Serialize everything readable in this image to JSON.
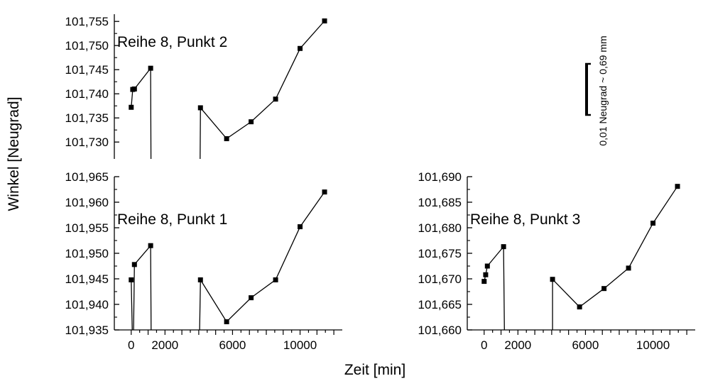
{
  "figure": {
    "ylabel": "Winkel [Neugrad]",
    "xlabel": "Zeit [min]",
    "scalebar_label": "0,01 Neugrad ~ 0,69 mm"
  },
  "chart_data": [
    {
      "id": "p2",
      "type": "line",
      "label": "Reihe 8, Punkt 2",
      "xlim": [
        -1000,
        12500
      ],
      "ylim": [
        101.7265,
        101.7565
      ],
      "yticks": [
        101.73,
        101.735,
        101.74,
        101.745,
        101.75,
        101.755
      ],
      "yticklabels": [
        "101,730",
        "101,735",
        "101,740",
        "101,745",
        "101,750",
        "101,755"
      ],
      "xticks": [],
      "xticklabels": [],
      "series": [
        {
          "points": [
            [
              0,
              101.7372
            ],
            [
              90,
              101.7409
            ],
            [
              190,
              101.741
            ],
            [
              1150,
              101.7453
            ]
          ],
          "tail_end": [
            1170,
            101.7265
          ]
        },
        {
          "points": [
            [
              4100,
              101.7371
            ],
            [
              5650,
              101.7307
            ],
            [
              7100,
              101.7342
            ],
            [
              8550,
              101.7389
            ],
            [
              10000,
              101.7494
            ],
            [
              11450,
              101.7551
            ]
          ],
          "lead_start": [
            4080,
            101.7265
          ]
        }
      ]
    },
    {
      "id": "p1",
      "type": "line",
      "label": "Reihe 8, Punkt 1",
      "xlim": [
        -1000,
        12500
      ],
      "ylim": [
        101.935,
        101.965
      ],
      "yticks": [
        101.935,
        101.94,
        101.945,
        101.95,
        101.955,
        101.96,
        101.965
      ],
      "yticklabels": [
        "101,935",
        "101,940",
        "101,945",
        "101,950",
        "101,955",
        "101,960",
        "101,965"
      ],
      "xticks": [
        0,
        2000,
        6000,
        10000
      ],
      "xticklabels": [
        "0",
        "2000",
        "6000",
        "10000"
      ],
      "series": [
        {
          "points": [
            [
              0,
              101.9448
            ]
          ],
          "tail_end": [
            60,
            101.935
          ]
        },
        {
          "lead_start": [
            140,
            101.935
          ],
          "points": [
            [
              190,
              101.9478
            ],
            [
              1150,
              101.9515
            ]
          ],
          "tail_end": [
            1180,
            101.935
          ]
        },
        {
          "lead_start": [
            4050,
            101.935
          ],
          "points": [
            [
              4100,
              101.9448
            ],
            [
              5650,
              101.9366
            ],
            [
              7100,
              101.9413
            ],
            [
              8550,
              101.9448
            ],
            [
              10000,
              101.9552
            ],
            [
              11450,
              101.962
            ]
          ]
        }
      ]
    },
    {
      "id": "p3",
      "type": "line",
      "label": "Reihe 8, Punkt 3",
      "xlim": [
        -1000,
        12500
      ],
      "ylim": [
        101.66,
        101.69
      ],
      "yticks": [
        101.66,
        101.665,
        101.67,
        101.675,
        101.68,
        101.685,
        101.69
      ],
      "yticklabels": [
        "101,660",
        "101,665",
        "101,670",
        "101,675",
        "101,680",
        "101,685",
        "101,690"
      ],
      "xticks": [
        0,
        2000,
        6000,
        10000
      ],
      "xticklabels": [
        "0",
        "2000",
        "6000",
        "10000"
      ],
      "series": [
        {
          "points": [
            [
              0,
              101.6695
            ],
            [
              90,
              101.6708
            ],
            [
              190,
              101.6725
            ],
            [
              1150,
              101.6763
            ]
          ],
          "tail_end": [
            1200,
            101.66
          ]
        },
        {
          "lead_start": [
            4050,
            101.66
          ],
          "points": [
            [
              4050,
              101.6699
            ],
            [
              5650,
              101.6645
            ],
            [
              7100,
              101.6681
            ],
            [
              8550,
              101.6721
            ],
            [
              10000,
              101.6809
            ],
            [
              11450,
              101.6881
            ]
          ]
        }
      ]
    }
  ]
}
